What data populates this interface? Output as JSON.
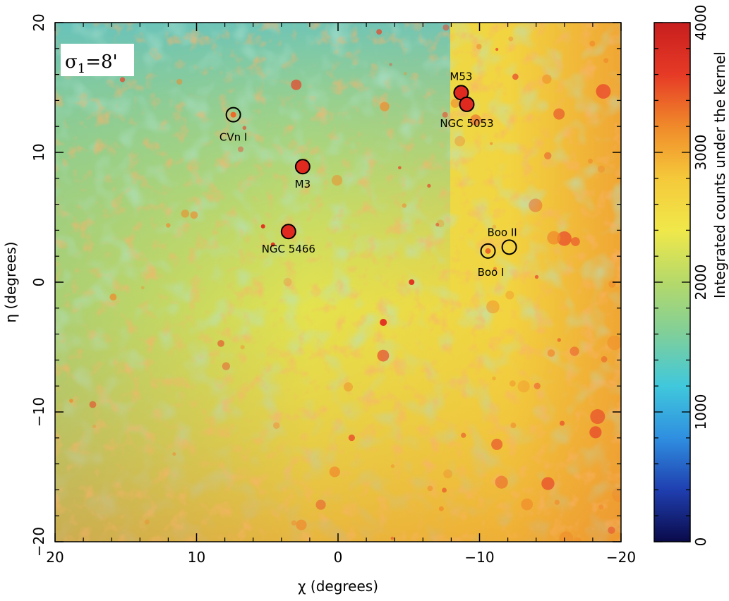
{
  "chart_data": {
    "type": "heatmap",
    "title": "",
    "kernel_label": "σ1=8'",
    "kernel_label_main": "σ",
    "kernel_label_sub": "1",
    "kernel_label_rest": "=8'",
    "xlabel": "χ (degrees)",
    "ylabel": "η (degrees)",
    "xlim": [
      20,
      -20
    ],
    "ylim": [
      -20,
      20
    ],
    "x_ticks": [
      20,
      10,
      0,
      -10,
      -20
    ],
    "y_ticks": [
      20,
      10,
      0,
      -10,
      -20
    ],
    "colorbar": {
      "label": "Integrated counts under the kernel",
      "range": [
        0,
        4000
      ],
      "ticks": [
        0,
        1000,
        2000,
        3000,
        4000
      ],
      "colors": [
        "#0a0a4a",
        "#1f3fb0",
        "#2f8fe0",
        "#40c8dc",
        "#7fcf9a",
        "#b5d96a",
        "#f0e84a",
        "#f5c93a",
        "#f08a2a",
        "#e63a26",
        "#c81e1e"
      ]
    },
    "objects": [
      {
        "name": "M53",
        "x": -8.7,
        "y": 14.6,
        "filled": true
      },
      {
        "name": "NGC 5053",
        "x": -9.1,
        "y": 13.7,
        "filled": true
      },
      {
        "name": "CVn I",
        "x": 7.4,
        "y": 12.9,
        "filled": false
      },
      {
        "name": "M3",
        "x": 2.5,
        "y": 8.9,
        "filled": true
      },
      {
        "name": "NGC 5466",
        "x": 3.5,
        "y": 3.9,
        "filled": true
      },
      {
        "name": "Boo I",
        "x": -10.6,
        "y": 2.4,
        "filled": false
      },
      {
        "name": "Boo II",
        "x": -12.1,
        "y": 2.7,
        "filled": false
      }
    ]
  }
}
